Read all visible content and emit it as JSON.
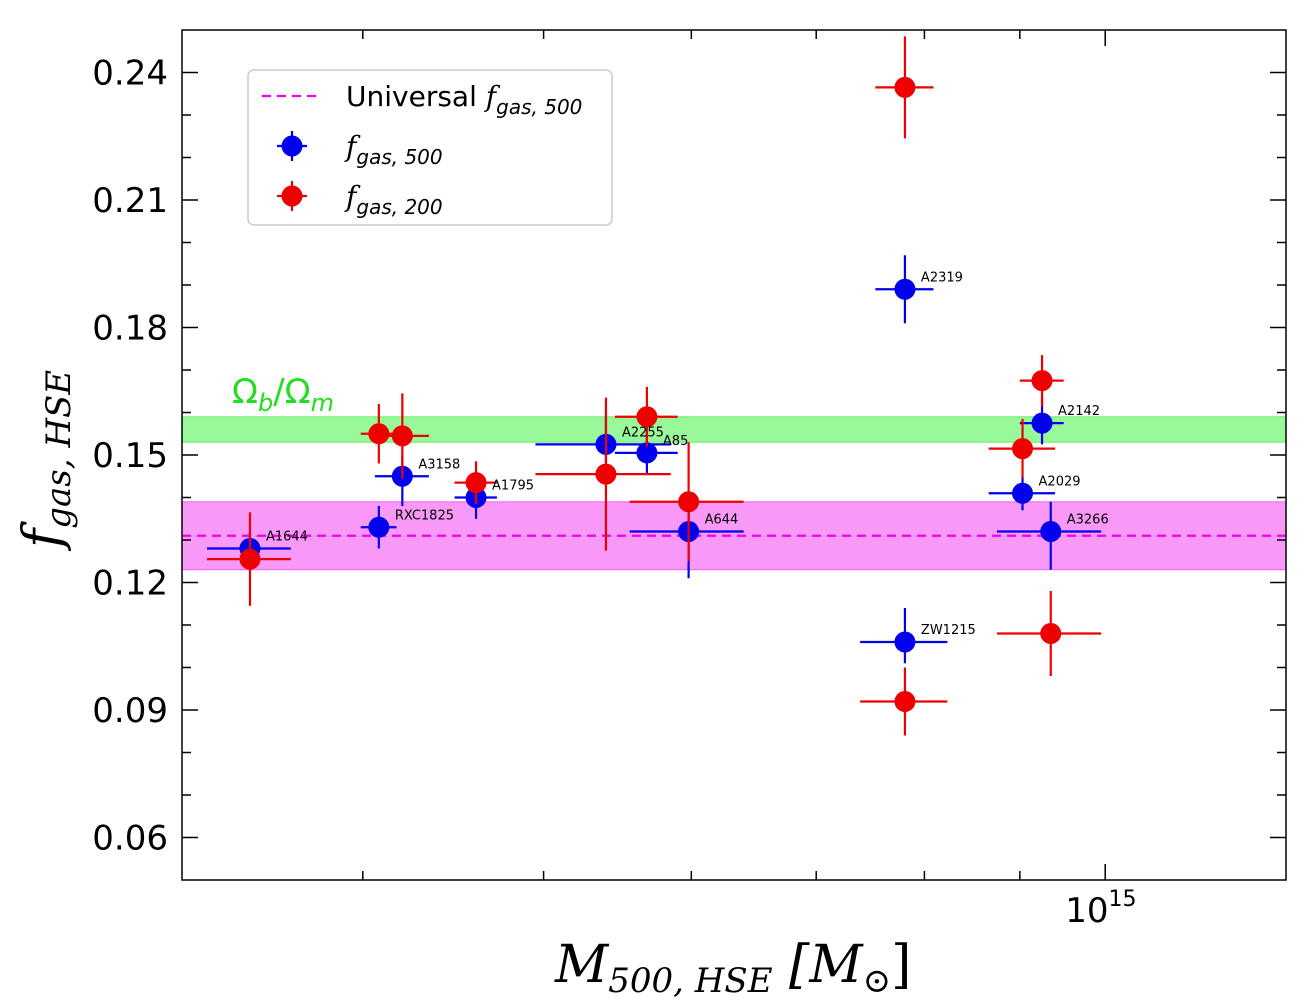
{
  "chart_data": {
    "type": "scatter",
    "xscale": "log",
    "xlim": [
      320000000000000.0,
      1250000000000000.0
    ],
    "ylim": [
      0.05,
      0.25
    ],
    "yticks": [
      0.06,
      0.09,
      0.12,
      0.15,
      0.18,
      0.21,
      0.24
    ],
    "ytick_labels": [
      "0.06",
      "0.09",
      "0.12",
      "0.15",
      "0.18",
      "0.21",
      "0.24"
    ],
    "x_major_tick_value": 1000000000000000.0,
    "x_major_tick_base": "10",
    "x_major_tick_exp": "15",
    "x_minor_ticks": [
      400000000000000.0,
      500000000000000.0,
      600000000000000.0,
      700000000000000.0,
      800000000000000.0,
      900000000000000.0
    ],
    "xlabel": {
      "symbol": "M",
      "sub": "500, HSE",
      "unit_open": "[M",
      "unit_sub": "⊙",
      "unit_close": "]"
    },
    "ylabel": {
      "symbol": "f",
      "sub": "gas, HSE"
    },
    "bands": [
      {
        "name": "Ωb/Ωm",
        "label_main": "Ω",
        "label_sub1": "b",
        "label_slash": "/Ω",
        "label_sub2": "m",
        "y_low": 0.153,
        "y_high": 0.159,
        "color": "#00ee00",
        "label_color": "#22dd22"
      },
      {
        "name": "Universal fgas,500",
        "y_low": 0.123,
        "y_high": 0.139,
        "color": "#ee00ee"
      }
    ],
    "universal_line": {
      "y": 0.131,
      "color": "#ee00ee"
    },
    "legend": [
      {
        "label_main": "Universal ",
        "label_it": "f",
        "label_sub": "gas, 500",
        "marker": "dashed-line",
        "color": "#ee00ee"
      },
      {
        "label_main": "",
        "label_it": "f",
        "label_sub": "gas, 500",
        "marker": "point",
        "color": "#0000ee"
      },
      {
        "label_main": "",
        "label_it": "f",
        "label_sub": "gas, 200",
        "marker": "point",
        "color": "#ee0000"
      }
    ],
    "series": [
      {
        "name": "fgas,500",
        "color": "#0000ee",
        "points": [
          {
            "label": "A1644",
            "x": 348000000000000.0,
            "y": 0.128,
            "xerr": [
              18000000000000.0,
              18000000000000.0
            ],
            "yerr": [
              0.004,
              0.004
            ]
          },
          {
            "label": "RXC1825",
            "x": 408000000000000.0,
            "y": 0.133,
            "xerr": [
              9000000000000.0,
              9000000000000.0
            ],
            "yerr": [
              0.005,
              0.005
            ]
          },
          {
            "label": "A3158",
            "x": 420000000000000.0,
            "y": 0.145,
            "xerr": [
              14000000000000.0,
              14000000000000.0
            ],
            "yerr": [
              0.007,
              0.005
            ]
          },
          {
            "label": "A1795",
            "x": 460000000000000.0,
            "y": 0.14,
            "xerr": [
              12000000000000.0,
              12000000000000.0
            ],
            "yerr": [
              0.005,
              0.005
            ]
          },
          {
            "label": "A2255",
            "x": 540000000000000.0,
            "y": 0.1525,
            "xerr": [
              45000000000000.0,
              45000000000000.0
            ],
            "yerr": [
              0.007,
              0.007
            ]
          },
          {
            "label": "A85",
            "x": 568000000000000.0,
            "y": 0.1505,
            "xerr": [
              22000000000000.0,
              22000000000000.0
            ],
            "yerr": [
              0.005,
              0.005
            ]
          },
          {
            "label": "A644",
            "x": 598000000000000.0,
            "y": 0.132,
            "xerr": [
              42000000000000.0,
              42000000000000.0
            ],
            "yerr": [
              0.011,
              0.006
            ]
          },
          {
            "label": "A2319",
            "x": 781000000000000.0,
            "y": 0.189,
            "xerr": [
              28000000000000.0,
              28000000000000.0
            ],
            "yerr": [
              0.008,
              0.008
            ]
          },
          {
            "label": "ZW1215",
            "x": 781000000000000.0,
            "y": 0.106,
            "xerr": [
              42000000000000.0,
              42000000000000.0
            ],
            "yerr": [
              0.005,
              0.008
            ]
          },
          {
            "label": "A2142",
            "x": 925000000000000.0,
            "y": 0.1575,
            "xerr": [
              25000000000000.0,
              25000000000000.0
            ],
            "yerr": [
              0.005,
              0.006
            ]
          },
          {
            "label": "A2029",
            "x": 903000000000000.0,
            "y": 0.141,
            "xerr": [
              37000000000000.0,
              37000000000000.0
            ],
            "yerr": [
              0.004,
              0.004
            ]
          },
          {
            "label": "A3266",
            "x": 935000000000000.0,
            "y": 0.132,
            "xerr": [
              60000000000000.0,
              60000000000000.0
            ],
            "yerr": [
              0.009,
              0.007
            ]
          }
        ]
      },
      {
        "name": "fgas,200",
        "color": "#ee0000",
        "points": [
          {
            "x": 348000000000000.0,
            "y": 0.1255,
            "xerr": [
              18000000000000.0,
              18000000000000.0
            ],
            "yerr": [
              0.011,
              0.011
            ]
          },
          {
            "x": 408000000000000.0,
            "y": 0.155,
            "xerr": [
              9000000000000.0,
              9000000000000.0
            ],
            "yerr": [
              0.007,
              0.007
            ]
          },
          {
            "x": 420000000000000.0,
            "y": 0.1545,
            "xerr": [
              14000000000000.0,
              14000000000000.0
            ],
            "yerr": [
              0.01,
              0.01
            ]
          },
          {
            "x": 460000000000000.0,
            "y": 0.1435,
            "xerr": [
              12000000000000.0,
              12000000000000.0
            ],
            "yerr": [
              0.005,
              0.005
            ]
          },
          {
            "x": 540000000000000.0,
            "y": 0.1455,
            "xerr": [
              45000000000000.0,
              45000000000000.0
            ],
            "yerr": [
              0.018,
              0.018
            ]
          },
          {
            "x": 568000000000000.0,
            "y": 0.159,
            "xerr": [
              22000000000000.0,
              22000000000000.0
            ],
            "yerr": [
              0.007,
              0.007
            ]
          },
          {
            "x": 598000000000000.0,
            "y": 0.139,
            "xerr": [
              42000000000000.0,
              42000000000000.0
            ],
            "yerr": [
              0.014,
              0.014
            ]
          },
          {
            "x": 781000000000000.0,
            "y": 0.2365,
            "xerr": [
              28000000000000.0,
              28000000000000.0
            ],
            "yerr": [
              0.012,
              0.012
            ]
          },
          {
            "x": 781000000000000.0,
            "y": 0.092,
            "xerr": [
              42000000000000.0,
              42000000000000.0
            ],
            "yerr": [
              0.008,
              0.008
            ]
          },
          {
            "x": 925000000000000.0,
            "y": 0.1675,
            "xerr": [
              25000000000000.0,
              25000000000000.0
            ],
            "yerr": [
              0.006,
              0.006
            ]
          },
          {
            "x": 903000000000000.0,
            "y": 0.1515,
            "xerr": [
              37000000000000.0,
              37000000000000.0
            ],
            "yerr": [
              0.007,
              0.007
            ]
          },
          {
            "x": 935000000000000.0,
            "y": 0.108,
            "xerr": [
              60000000000000.0,
              60000000000000.0
            ],
            "yerr": [
              0.01,
              0.01
            ]
          }
        ]
      }
    ]
  }
}
